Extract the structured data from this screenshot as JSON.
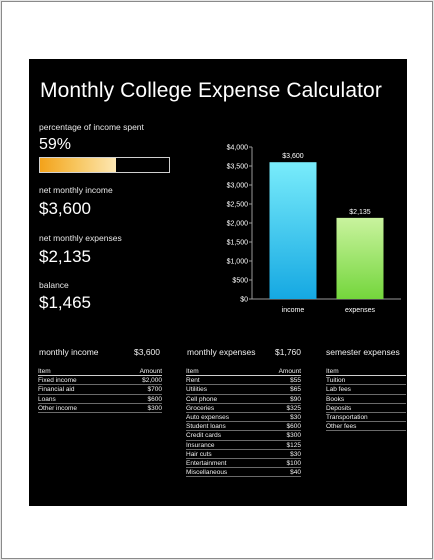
{
  "title": "Monthly College Expense Calculator",
  "summary": {
    "pct_label": "percentage of income spent",
    "pct_value": "59%",
    "pct_fraction": 0.59,
    "income_label": "net monthly income",
    "income_value": "$3,600",
    "expenses_label": "net monthly expenses",
    "expenses_value": "$2,135",
    "balance_label": "balance",
    "balance_value": "$1,465"
  },
  "colors": {
    "background": "#000000",
    "income_bar": "#2ec4ef",
    "expenses_bar": "#93e55a",
    "progress_fill": "#f3a21a"
  },
  "chart_data": {
    "type": "bar",
    "categories": [
      "income",
      "expenses"
    ],
    "values": [
      3600,
      2135
    ],
    "data_labels": [
      "$3,600",
      "$2,135"
    ],
    "ylim": [
      0,
      4000
    ],
    "yticks": [
      "$0",
      "$500",
      "$1,000",
      "$1,500",
      "$2,000",
      "$2,500",
      "$3,000",
      "$3,500",
      "$4,000"
    ],
    "ytick_values": [
      0,
      500,
      1000,
      1500,
      2000,
      2500,
      3000,
      3500,
      4000
    ],
    "grid": false,
    "legend": "none"
  },
  "income_table": {
    "heading": "monthly income",
    "total": "$3,600",
    "col_item": "Item",
    "col_amount": "Amount",
    "rows": [
      {
        "item": "Fixed income",
        "amount": "$2,000"
      },
      {
        "item": "Financial aid",
        "amount": "$700"
      },
      {
        "item": "Loans",
        "amount": "$600"
      },
      {
        "item": "Other income",
        "amount": "$300"
      }
    ]
  },
  "expenses_table": {
    "heading": "monthly expenses",
    "total": "$1,760",
    "col_item": "Item",
    "col_amount": "Amount",
    "rows": [
      {
        "item": "Rent",
        "amount": "$55"
      },
      {
        "item": "Utilities",
        "amount": "$65"
      },
      {
        "item": "Cell phone",
        "amount": "$90"
      },
      {
        "item": "Groceries",
        "amount": "$325"
      },
      {
        "item": "Auto expenses",
        "amount": "$30"
      },
      {
        "item": "Student loans",
        "amount": "$600"
      },
      {
        "item": "Credit cards",
        "amount": "$300"
      },
      {
        "item": "Insurance",
        "amount": "$125"
      },
      {
        "item": "Hair cuts",
        "amount": "$30"
      },
      {
        "item": "Entertainment",
        "amount": "$100"
      },
      {
        "item": "Miscellaneous",
        "amount": "$40"
      }
    ]
  },
  "semester_table": {
    "heading": "semester expenses",
    "col_item": "Item",
    "rows": [
      {
        "item": "Tuition"
      },
      {
        "item": "Lab fees"
      },
      {
        "item": "Books"
      },
      {
        "item": "Deposits"
      },
      {
        "item": "Transportation"
      },
      {
        "item": "Other fees"
      }
    ]
  }
}
